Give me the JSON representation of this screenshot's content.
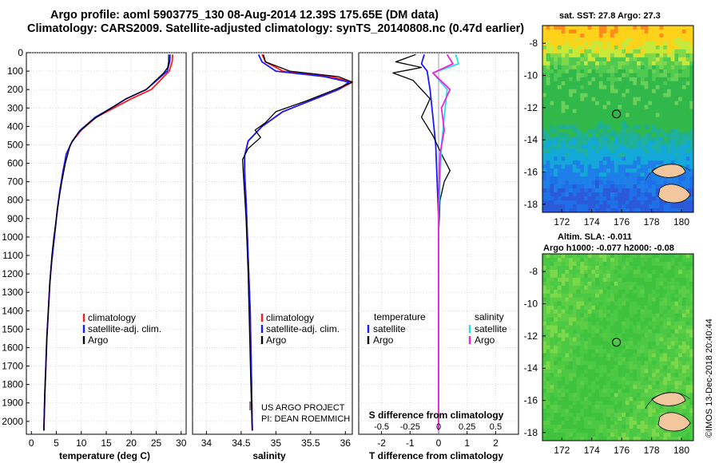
{
  "header": {
    "title_line1": "Argo profile: aoml 5903775_130 08-Aug-2014 12.39S 175.65E (DM data)",
    "title_line2": "Climatology: CARS2009. Satellite-adjusted climatology: synTS_20140808.nc (0.47d earlier)"
  },
  "credit": "©IMOS 13-Dec-2018 20:40:44",
  "colors": {
    "climatology": "#ff1a1a",
    "satellite": "#1a1aff",
    "argo": "#000000",
    "salinity_satellite": "#22e0e6",
    "salinity_argo": "#ee22dd"
  },
  "chart_data": [
    {
      "type": "line",
      "id": "temperature_profile",
      "xlabel": "temperature (deg C)",
      "ylabel": "",
      "xlim": [
        -1,
        31
      ],
      "ylim": [
        2070,
        0
      ],
      "xticks": [
        0,
        5,
        10,
        15,
        20,
        25,
        30
      ],
      "yticks": [
        0,
        100,
        200,
        300,
        400,
        500,
        600,
        700,
        800,
        900,
        1000,
        1100,
        1200,
        1300,
        1400,
        1500,
        1600,
        1700,
        1800,
        1900,
        2000
      ],
      "legend": [
        "climatology",
        "satellite-adj. clim.",
        "Argo"
      ],
      "series": [
        {
          "name": "climatology",
          "x": [
            28.3,
            28.2,
            27.6,
            24.0,
            20.0,
            16.5,
            13.0,
            10.0,
            8.2,
            7.0,
            6.3,
            5.7,
            5.2,
            4.8,
            4.4,
            4.0,
            3.7,
            3.4,
            3.1,
            2.9,
            2.7,
            2.6,
            2.5
          ],
          "y": [
            10,
            50,
            100,
            200,
            250,
            300,
            350,
            420,
            480,
            550,
            650,
            750,
            850,
            950,
            1050,
            1150,
            1250,
            1400,
            1550,
            1700,
            1850,
            1950,
            2050
          ]
        },
        {
          "name": "satellite-adj. clim.",
          "x": [
            27.8,
            27.7,
            27.2,
            23.0,
            19.0,
            16.0,
            12.8,
            9.8,
            8.2,
            7.0,
            6.3,
            5.7,
            5.2,
            4.8,
            4.4,
            4.0,
            3.7,
            3.4,
            3.1,
            2.9,
            2.7,
            2.6,
            2.5
          ],
          "y": [
            10,
            50,
            100,
            200,
            250,
            300,
            350,
            420,
            480,
            550,
            650,
            750,
            850,
            950,
            1050,
            1150,
            1250,
            1400,
            1550,
            1700,
            1850,
            1950,
            2050
          ]
        },
        {
          "name": "Argo",
          "x": [
            27.5,
            27.5,
            27.3,
            26.5,
            23.0,
            19.0,
            16.0,
            12.5,
            9.5,
            7.8,
            6.8,
            6.1,
            5.5,
            5.0,
            4.5,
            4.1,
            3.7,
            3.4,
            3.1,
            2.9,
            2.7,
            2.6,
            2.5
          ],
          "y": [
            10,
            50,
            80,
            110,
            200,
            250,
            300,
            360,
            430,
            500,
            600,
            700,
            800,
            900,
            1000,
            1100,
            1250,
            1400,
            1550,
            1700,
            1850,
            1950,
            2050
          ]
        }
      ]
    },
    {
      "type": "line",
      "id": "salinity_profile",
      "xlabel": "salinity",
      "ylabel": "",
      "xlim": [
        33.8,
        36.1
      ],
      "ylim": [
        2070,
        0
      ],
      "xticks": [
        34,
        34.5,
        35,
        35.5,
        36
      ],
      "legend": [
        "climatology",
        "satellite-adj. clim.",
        "Argo"
      ],
      "annotations": [
        "US ARGO PROJECT",
        "PI: DEAN ROEMMICH"
      ],
      "series": [
        {
          "name": "climatology",
          "x": [
            34.8,
            34.85,
            35.1,
            35.8,
            36.1,
            35.9,
            35.5,
            35.1,
            34.8,
            34.6,
            34.55,
            34.55,
            34.57,
            34.59,
            34.61,
            34.63,
            34.64,
            34.65,
            34.66
          ],
          "y": [
            10,
            50,
            100,
            130,
            160,
            200,
            260,
            320,
            400,
            480,
            560,
            650,
            800,
            1000,
            1200,
            1400,
            1600,
            1800,
            2050
          ]
        },
        {
          "name": "satellite-adj. clim.",
          "x": [
            34.75,
            34.8,
            35.0,
            35.7,
            36.05,
            35.9,
            35.5,
            35.1,
            34.8,
            34.6,
            34.55,
            34.55,
            34.57,
            34.59,
            34.61,
            34.63,
            34.64,
            34.65,
            34.66
          ],
          "y": [
            10,
            50,
            100,
            130,
            160,
            200,
            260,
            320,
            400,
            480,
            560,
            650,
            800,
            1000,
            1200,
            1400,
            1600,
            1800,
            2050
          ]
        },
        {
          "name": "Argo",
          "x": [
            34.82,
            34.85,
            35.2,
            35.9,
            36.1,
            35.85,
            35.45,
            35.0,
            34.85,
            34.7,
            34.78,
            34.6,
            34.52,
            34.53,
            34.57,
            34.6,
            34.62,
            34.64,
            34.65,
            34.66
          ],
          "y": [
            10,
            50,
            100,
            130,
            160,
            200,
            260,
            320,
            380,
            420,
            460,
            520,
            580,
            650,
            900,
            1200,
            1500,
            1800,
            1950,
            2050
          ]
        }
      ]
    },
    {
      "type": "line",
      "id": "difference_profile",
      "xlabel": "T difference from climatology",
      "xlabel_top": "S difference from climatology",
      "xlim": [
        -2.8,
        2.8
      ],
      "ylim": [
        2070,
        0
      ],
      "xticks": [
        -2,
        -1,
        0,
        1,
        2
      ],
      "xtick_labels_s": [
        "-0.5",
        "-0.25",
        "0",
        "0.25",
        "0.5"
      ],
      "s_scale_factor": 4,
      "legend_left_title": "temperature",
      "legend_right_title": "salinity",
      "legend_left": [
        "satellite",
        "Argo"
      ],
      "legend_right": [
        "satellite",
        "Argo"
      ],
      "series": [
        {
          "name": "temperature satellite",
          "x": [
            -0.5,
            -0.6,
            -0.4,
            -0.3,
            -0.2,
            -0.1,
            -0.05,
            0,
            0,
            0
          ],
          "y": [
            10,
            60,
            100,
            200,
            350,
            500,
            700,
            900,
            1400,
            2050
          ]
        },
        {
          "name": "temperature Argo",
          "x": [
            -0.8,
            -1.5,
            -0.6,
            -1.6,
            -0.9,
            -0.3,
            -0.6,
            -0.2,
            0.1,
            0.4,
            0.2,
            0.05,
            0,
            0
          ],
          "y": [
            10,
            50,
            80,
            110,
            150,
            250,
            350,
            450,
            550,
            640,
            700,
            800,
            1000,
            2050
          ]
        },
        {
          "name": "salinity satellite",
          "x": [
            0.6,
            0.7,
            -0.2,
            0.3,
            0.2,
            0.1,
            0.05,
            0,
            0
          ],
          "y": [
            10,
            60,
            110,
            200,
            350,
            500,
            700,
            900,
            2050
          ]
        },
        {
          "name": "salinity Argo",
          "x": [
            0.3,
            0.5,
            -0.2,
            0.4,
            0.1,
            0.2,
            0.05,
            0,
            0
          ],
          "y": [
            10,
            60,
            110,
            200,
            300,
            420,
            550,
            800,
            2050
          ]
        }
      ]
    },
    {
      "type": "heatmap",
      "id": "sst_map",
      "title": "sat. SST: 27.8 Argo: 27.3",
      "xticks": [
        172,
        174,
        176,
        178,
        180
      ],
      "yticks": [
        -8,
        -10,
        -12,
        -14,
        -16,
        -18
      ],
      "xlim": [
        170.7,
        180.8
      ],
      "ylim": [
        -18.5,
        -6.9
      ],
      "marker": {
        "lon": 175.65,
        "lat": -12.39
      }
    },
    {
      "type": "heatmap",
      "id": "sla_map",
      "title": "Altim. SLA: -0.011",
      "subtitle": "Argo h1000: -0.077 h2000: -0.08",
      "xticks": [
        172,
        174,
        176,
        178,
        180
      ],
      "yticks": [
        -8,
        -10,
        -12,
        -14,
        -16,
        -18
      ],
      "xlim": [
        170.7,
        180.8
      ],
      "ylim": [
        -18.5,
        -6.9
      ],
      "marker": {
        "lon": 175.65,
        "lat": -12.39
      }
    }
  ]
}
